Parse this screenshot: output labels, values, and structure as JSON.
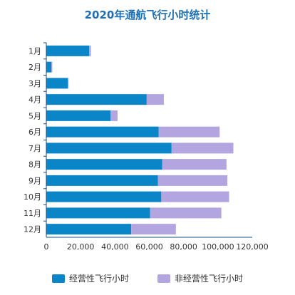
{
  "chart_data": {
    "type": "bar",
    "orientation": "horizontal",
    "stacked": true,
    "title": "2020年通航飞行小时统计",
    "categories": [
      "1月",
      "2月",
      "3月",
      "4月",
      "5月",
      "6月",
      "7月",
      "8月",
      "9月",
      "10月",
      "11月",
      "12月"
    ],
    "series": [
      {
        "name": "经营性飞行小时",
        "color": "#0a86c8",
        "values": [
          25000,
          3000,
          12500,
          58500,
          37500,
          65500,
          73000,
          67500,
          65000,
          67000,
          60500,
          49500
        ]
      },
      {
        "name": "非经营性飞行小时",
        "color": "#b3a5df",
        "values": [
          1000,
          500,
          500,
          10000,
          4000,
          35500,
          36000,
          37500,
          40500,
          39500,
          41500,
          26000
        ]
      }
    ],
    "xlim": [
      0,
      120000
    ],
    "xticks": [
      "0",
      "20,000",
      "40,000",
      "60,000",
      "80,000",
      "100,000",
      "120,000"
    ],
    "xtick_values": [
      0,
      20000,
      40000,
      60000,
      80000,
      100000,
      120000
    ],
    "grid": false,
    "legend_position": "bottom"
  }
}
